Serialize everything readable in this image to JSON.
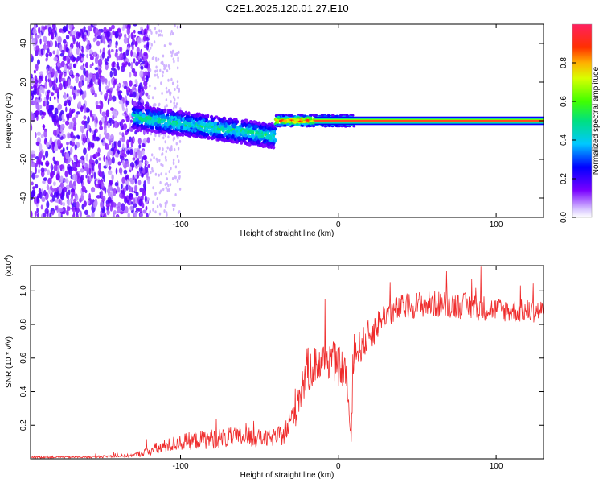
{
  "title": "C2E1.2025.120.01.27.E10",
  "chart_data": [
    {
      "type": "heatmap",
      "xlabel": "Height of straight line (km)",
      "ylabel": "Frequency (Hz)",
      "xlim": [
        -195,
        130
      ],
      "ylim": [
        -50,
        50
      ],
      "xticks": [
        -100,
        0,
        100
      ],
      "yticks": [
        -40,
        -20,
        0,
        20,
        40
      ],
      "colorbar": {
        "label": "Normalized spectral amplitude",
        "range": [
          0,
          1
        ],
        "ticks": [
          0.0,
          0.2,
          0.4,
          0.6,
          0.8
        ]
      },
      "regions": [
        {
          "x": [
            -195,
            -120
          ],
          "description_level": "broadband noise",
          "freq_spread": [
            -50,
            50
          ],
          "amplitude": [
            0.05,
            0.2
          ]
        },
        {
          "x": [
            -130,
            -40
          ],
          "center_freq": [
            2,
            -8
          ],
          "freq_spread": 6,
          "amplitude": [
            0.25,
            0.45
          ]
        },
        {
          "x": [
            -40,
            10
          ],
          "center_freq": [
            0,
            0
          ],
          "freq_spread": 3,
          "amplitude": [
            0.5,
            0.85
          ]
        },
        {
          "x": [
            10,
            130
          ],
          "center_freq": 0,
          "freq_spread": 2,
          "amplitude": 1.0
        }
      ]
    },
    {
      "type": "line",
      "xlabel": "Height of straight line (km)",
      "ylabel": "SNR (10 * v/v)",
      "yscale_label": "(x10",
      "yscale_exp": "4",
      "xlim": [
        -195,
        130
      ],
      "ylim": [
        0,
        1.15
      ],
      "xticks": [
        -100,
        0,
        100
      ],
      "yticks": [
        0.2,
        0.4,
        0.6,
        0.8,
        1.0
      ],
      "series": [
        {
          "color": "#ef2b2b",
          "x": [
            -195,
            -160,
            -130,
            -115,
            -100,
            -80,
            -60,
            -45,
            -35,
            -30,
            -25,
            -20,
            -15,
            -10,
            -5,
            0,
            5,
            8,
            10,
            15,
            20,
            25,
            30,
            40,
            50,
            60,
            70,
            80,
            90,
            100,
            110,
            120,
            130
          ],
          "y": [
            0.01,
            0.01,
            0.02,
            0.06,
            0.1,
            0.12,
            0.13,
            0.12,
            0.14,
            0.22,
            0.38,
            0.52,
            0.56,
            0.58,
            0.6,
            0.55,
            0.52,
            0.1,
            0.62,
            0.68,
            0.74,
            0.8,
            0.86,
            0.9,
            0.92,
            0.92,
            0.92,
            0.91,
            0.9,
            0.89,
            0.88,
            0.88,
            0.88
          ],
          "noise": [
            0.006,
            0.006,
            0.01,
            0.04,
            0.05,
            0.06,
            0.06,
            0.05,
            0.06,
            0.1,
            0.14,
            0.14,
            0.12,
            0.12,
            0.12,
            0.12,
            0.1,
            0.05,
            0.1,
            0.1,
            0.1,
            0.09,
            0.08,
            0.08,
            0.08,
            0.08,
            0.08,
            0.08,
            0.08,
            0.07,
            0.07,
            0.07,
            0.07
          ]
        }
      ]
    }
  ]
}
